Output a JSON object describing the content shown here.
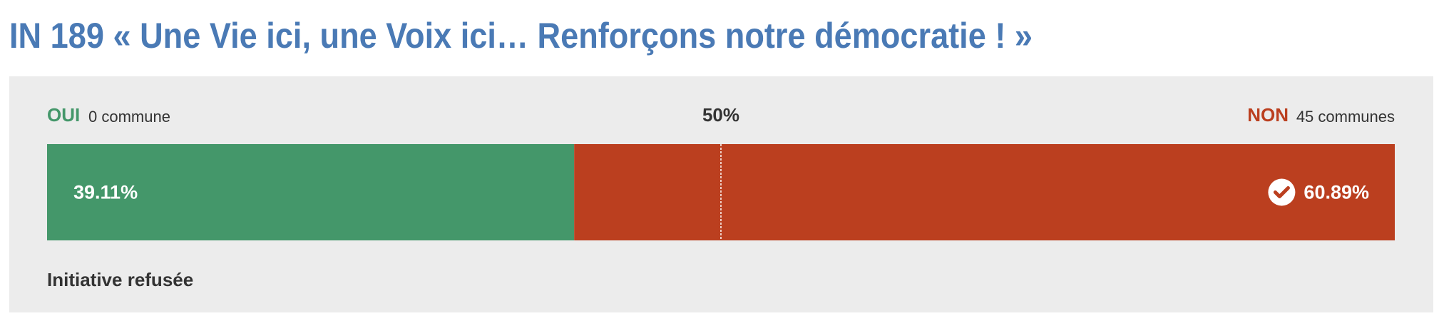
{
  "chart_data": {
    "type": "stacked-bar",
    "title": "IN 189 « Une Vie ici, une Voix ici… Renforçons notre démocratie ! »",
    "series": [
      {
        "name": "OUI",
        "count_label": "0 commune",
        "color": "#44976a",
        "values": [
          39.11
        ],
        "value_labels": [
          "39.11%"
        ]
      },
      {
        "name": "NON",
        "count_label": "45 communes",
        "color": "#bb3f1f",
        "values": [
          60.89
        ],
        "value_labels": [
          "60.89%"
        ]
      }
    ],
    "xlim": [
      0,
      100
    ],
    "xticks": [
      {
        "value": 50,
        "label": "50%"
      }
    ],
    "result": "Initiative refusée"
  }
}
